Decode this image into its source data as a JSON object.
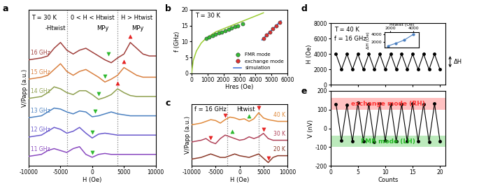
{
  "chart_data": [
    {
      "panel_label": "a",
      "type": "line",
      "annotations": [
        "T = 30 K",
        "-Htwist",
        "0 < H < Htwist",
        "H > Htwist",
        "MPy",
        "MPy"
      ],
      "xlabel": "H (Oe)",
      "ylabel": "V/Papp (a.u.)",
      "xlim": [
        -10000,
        10000
      ],
      "xticks": [
        -10000,
        -5000,
        0,
        5000,
        10000
      ],
      "ylim": [
        -0.5,
        7.6
      ],
      "tick_labels": "x",
      "twist_lines": [
        -4000,
        4000
      ],
      "x": [
        -10000,
        -9000,
        -8000,
        -7000,
        -6000,
        -5000,
        -4000,
        -3000,
        -2000,
        -1000,
        0,
        1000,
        2000,
        3000,
        4000,
        5000,
        6000,
        7000,
        8000,
        9000,
        10000
      ],
      "series": [
        {
          "name": "16 GHz",
          "type": "line",
          "color": "#a0403c",
          "values": [
            5.0,
            5.05,
            5.1,
            5.2,
            5.6,
            5.9,
            5.5,
            5.3,
            5.5,
            5.6,
            5.4,
            5.2,
            5.0,
            4.85,
            5.1,
            5.3,
            5.9,
            5.6,
            5.3,
            5.2,
            5.2
          ]
        },
        {
          "name": "15 GHz",
          "type": "line",
          "color": "#d98040",
          "values": [
            4.0,
            4.05,
            4.1,
            4.2,
            4.5,
            4.8,
            4.4,
            4.2,
            4.4,
            4.5,
            4.3,
            4.1,
            3.85,
            4.0,
            4.2,
            4.6,
            4.4,
            4.2,
            4.1,
            4.1,
            4.1
          ]
        },
        {
          "name": "14 GHz",
          "type": "line",
          "color": "#8fa050",
          "values": [
            3.0,
            3.05,
            3.1,
            3.3,
            3.6,
            3.5,
            3.3,
            3.2,
            3.4,
            3.4,
            3.2,
            2.95,
            3.05,
            3.2,
            3.5,
            3.3,
            3.15,
            3.1,
            3.1,
            3.1,
            3.1
          ]
        },
        {
          "name": "13 GHz",
          "type": "line",
          "color": "#4a80c0",
          "values": [
            2.0,
            2.05,
            2.1,
            2.3,
            2.5,
            2.45,
            2.3,
            2.2,
            2.35,
            2.3,
            2.05,
            2.1,
            2.2,
            2.3,
            2.2,
            2.15,
            2.1,
            2.1,
            2.1,
            2.1,
            2.1
          ]
        },
        {
          "name": "12 GHz",
          "type": "line",
          "color": "#6a5acd",
          "values": [
            1.0,
            1.05,
            1.1,
            1.3,
            1.5,
            1.4,
            1.2,
            1.3,
            1.5,
            1.2,
            0.95,
            1.15,
            1.2,
            1.15,
            1.1,
            1.1,
            1.1,
            1.1,
            1.1,
            1.1,
            1.1
          ]
        },
        {
          "name": "11 GHz",
          "type": "line",
          "color": "#8a4ac0",
          "values": [
            0.0,
            0.05,
            0.1,
            0.3,
            0.4,
            0.3,
            0.2,
            0.4,
            0.5,
            0.1,
            -0.05,
            0.1,
            0.15,
            0.1,
            0.1,
            0.1,
            0.1,
            0.1,
            0.1,
            0.1,
            0.1
          ]
        },
        {
          "type": "scatter",
          "marker": "v",
          "color": "#2db82d",
          "x": [
            2500,
            2000,
            1000,
            500,
            0,
            0
          ],
          "values": [
            5.3,
            4.15,
            3.25,
            2.35,
            1.25,
            0.2
          ]
        },
        {
          "type": "scatter",
          "marker": "^",
          "color": "#e52222",
          "x": [
            6000,
            5000,
            4000
          ],
          "values": [
            6.2,
            4.9,
            3.8
          ]
        }
      ]
    },
    {
      "panel_label": "b",
      "type": "scatter",
      "annotations": [
        "T = 30 K"
      ],
      "xlabel": "Hres (Oe)",
      "ylabel": "f (GHz)",
      "xlim": [
        0,
        6000
      ],
      "xticks": [
        0,
        1000,
        2000,
        3000,
        4000,
        5000,
        6000
      ],
      "ylim": [
        0,
        20
      ],
      "yticks": [
        0,
        5,
        10,
        15,
        20
      ],
      "legend": "lower right",
      "series": [
        {
          "type": "line",
          "color": "#9acd32",
          "x": [
            0,
            100,
            300,
            600,
            900,
            1500,
            2000,
            2500,
            3000,
            3500,
            4000,
            4500
          ],
          "values": [
            0,
            4,
            7,
            9.5,
            11,
            13,
            14,
            15,
            16,
            17,
            18,
            19
          ]
        },
        {
          "name": "FMR mode",
          "type": "scatter",
          "marker": "o",
          "color": "#33bb33",
          "x": [
            900,
            1100,
            1300,
            1500,
            1700,
            1900,
            2100,
            2300,
            2500,
            2700,
            2900,
            3200
          ],
          "values": [
            11.0,
            11.3,
            11.8,
            12.2,
            12.6,
            13.0,
            13.4,
            13.9,
            14.2,
            14.6,
            15.0,
            15.6
          ]
        },
        {
          "name": "exchange mode",
          "type": "scatter",
          "marker": "o",
          "color": "#e03030",
          "x": [
            4500,
            4700,
            4900,
            5100,
            5300,
            5500
          ],
          "values": [
            11.0,
            12.0,
            13.0,
            14.0,
            15.0,
            16.0
          ]
        },
        {
          "name": "simulation",
          "type": "line",
          "color": "#3a6fd8",
          "x": [
            4400,
            4700,
            5000,
            5300,
            5600
          ],
          "values": [
            10.5,
            12.0,
            13.5,
            15.0,
            16.5
          ]
        }
      ]
    },
    {
      "panel_label": "c",
      "type": "line",
      "annotations": [
        "f = 16 GHz",
        "Htwist"
      ],
      "xlabel": "H (Oe)",
      "ylabel": "V/Papp (a.u.)",
      "xlim": [
        -10000,
        10000
      ],
      "xticks": [
        -10000,
        -5000,
        0,
        5000,
        10000
      ],
      "ylim": [
        -0.4,
        3.2
      ],
      "tick_labels": "x",
      "twist_lines": [
        -2500,
        4000
      ],
      "x": [
        -10000,
        -9000,
        -8000,
        -7000,
        -6000,
        -5000,
        -4000,
        -3000,
        -2000,
        -1000,
        0,
        1000,
        2000,
        3000,
        4000,
        5000,
        6000,
        7000,
        8000,
        9000,
        10000
      ],
      "series": [
        {
          "name": "40 K",
          "type": "line",
          "color": "#e08a3c",
          "values": [
            2.0,
            2.05,
            2.1,
            2.2,
            2.3,
            2.25,
            2.1,
            2.3,
            2.45,
            2.4,
            2.3,
            2.35,
            2.2,
            2.35,
            2.7,
            2.4,
            2.3,
            2.25,
            2.2,
            2.2,
            2.2
          ]
        },
        {
          "name": "30 K",
          "type": "line",
          "color": "#b0445a",
          "values": [
            1.0,
            1.05,
            1.1,
            1.2,
            1.0,
            0.9,
            1.2,
            1.4,
            1.3,
            1.2,
            1.1,
            1.15,
            1.3,
            1.2,
            1.3,
            1.5,
            1.2,
            1.1,
            1.1,
            1.1,
            1.1
          ]
        },
        {
          "name": "20 K",
          "type": "line",
          "color": "#8b3a2a",
          "values": [
            0.0,
            0.05,
            0.1,
            0.2,
            0.3,
            0.2,
            0.1,
            0.1,
            0.2,
            0.3,
            0.2,
            0.15,
            0.1,
            0.2,
            0.3,
            0.05,
            -0.2,
            0.1,
            0.2,
            0.2,
            0.2
          ]
        },
        {
          "type": "scatter",
          "marker": "^",
          "color": "#2db82d",
          "x": [
            2000,
            -1500
          ],
          "values": [
            2.5,
            1.6
          ]
        },
        {
          "type": "scatter",
          "marker": "v",
          "color": "#e52222",
          "x": [
            -3000,
            4000,
            -6000,
            5000,
            6000
          ],
          "values": [
            2.55,
            3.0,
            1.25,
            1.75,
            0.05
          ]
        }
      ]
    },
    {
      "panel_label": "d",
      "type": "line",
      "annotations": [
        "T = 40 K",
        "f = 16 GHz"
      ],
      "ylabel": "H (Oe)",
      "delta_label": "ΔH",
      "xlim": [
        0,
        21
      ],
      "xticks": [
        0,
        5,
        10,
        15,
        20
      ],
      "ylim": [
        0,
        8000
      ],
      "yticks": [
        0,
        2000,
        4000,
        6000,
        8000
      ],
      "tick_labels": "y",
      "x": [
        1,
        2,
        3,
        4,
        5,
        6,
        7,
        8,
        9,
        10,
        11,
        12,
        13,
        14,
        15,
        16,
        17,
        18,
        19,
        20
      ],
      "series": [
        {
          "type": "line",
          "color": "#000000",
          "marker": "o",
          "values": [
            4000,
            2000,
            4000,
            2000,
            4000,
            2000,
            4000,
            2000,
            4000,
            2000,
            4000,
            2000,
            4000,
            2000,
            4000,
            2000,
            4000,
            2000,
            4000,
            2000
          ]
        }
      ],
      "inset": {
        "type": "line",
        "xlabel": "Htwist (Oe)",
        "ylabel": "ΔH (Oe)",
        "xlim": [
          1500,
          4500
        ],
        "xticks": [
          2000,
          4000
        ],
        "ylim": [
          500,
          4500
        ],
        "yticks": [
          2000,
          4000
        ],
        "color": "#4a7fc0",
        "marker": "o",
        "x": [
          1800,
          2500,
          3200,
          4000
        ],
        "values": [
          1000,
          1700,
          2500,
          4000
        ]
      }
    },
    {
      "panel_label": "e",
      "type": "line",
      "xlabel": "Counts",
      "ylabel": "V (nV)",
      "xlim": [
        0,
        21
      ],
      "xticks": [
        0,
        5,
        10,
        15,
        20
      ],
      "ylim": [
        -200,
        200
      ],
      "yticks": [
        -200,
        -100,
        0,
        100,
        200
      ],
      "bands": [
        {
          "label": "exchange mode (RH)",
          "range": [
            100,
            160
          ],
          "color": "#ff3333"
        },
        {
          "label": "FMR mode (LH)",
          "range": [
            -100,
            -40
          ],
          "color": "#22bb22"
        }
      ],
      "x": [
        1,
        2,
        3,
        4,
        5,
        6,
        7,
        8,
        9,
        10,
        11,
        12,
        13,
        14,
        15,
        16,
        17,
        18,
        19,
        20
      ],
      "series": [
        {
          "type": "line",
          "color": "#000000",
          "marker": "o",
          "values": [
            130,
            -65,
            125,
            -70,
            135,
            -68,
            128,
            -72,
            132,
            -66,
            130,
            -70,
            127,
            -67,
            133,
            -69,
            129,
            -71,
            131,
            -68
          ]
        }
      ]
    }
  ]
}
